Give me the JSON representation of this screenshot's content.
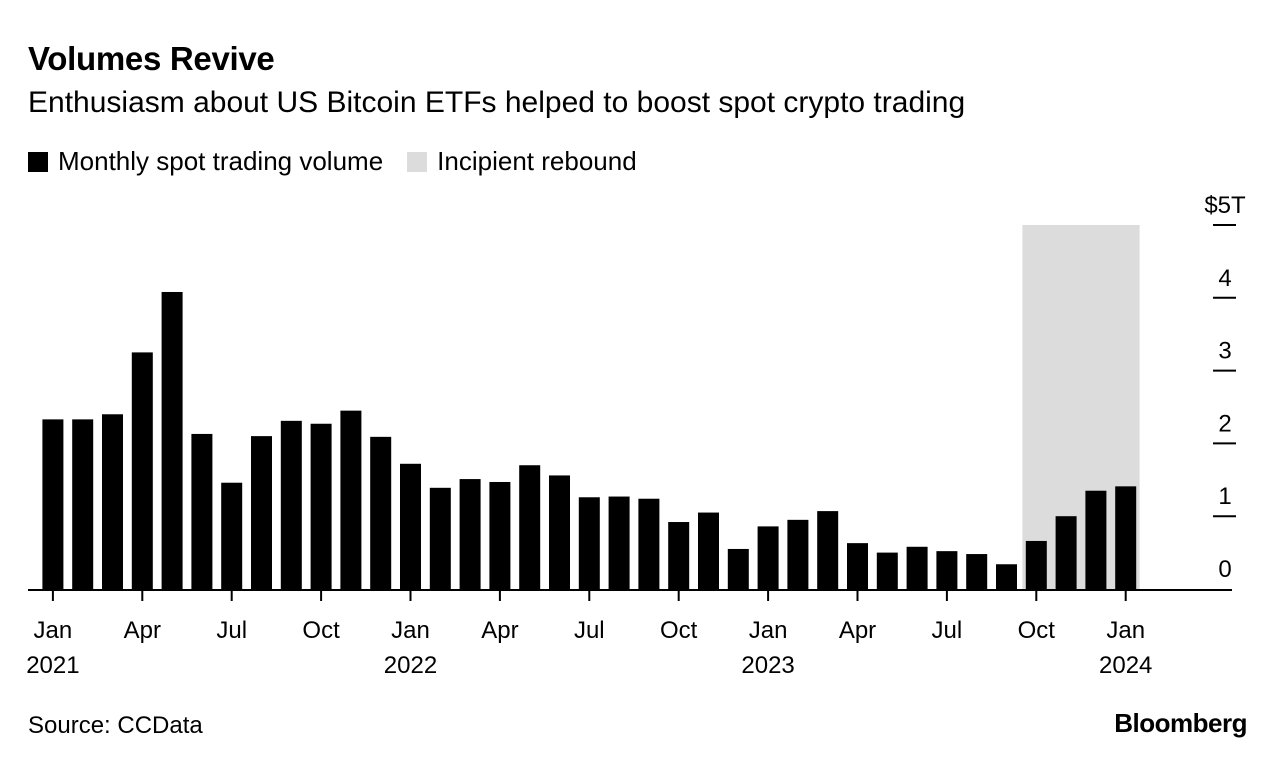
{
  "title": "Volumes Revive",
  "subtitle": "Enthusiasm about US Bitcoin ETFs helped to boost spot crypto trading",
  "legend": {
    "series_label": "Monthly spot trading volume",
    "shade_label": "Incipient rebound"
  },
  "source": "Source: CCData",
  "brand": "Bloomberg",
  "colors": {
    "bar": "#000000",
    "shade": "#dcdcdc",
    "axis": "#000000"
  },
  "chart_data": {
    "type": "bar",
    "title": "Volumes Revive",
    "ylabel": "Monthly spot trading volume ($T)",
    "xlabel": "",
    "ylim": [
      0,
      5
    ],
    "y_ticks": [
      {
        "value": 0,
        "label": "0"
      },
      {
        "value": 1,
        "label": "1"
      },
      {
        "value": 2,
        "label": "2"
      },
      {
        "value": 3,
        "label": "3"
      },
      {
        "value": 4,
        "label": "4"
      },
      {
        "value": 5,
        "label": "$5T"
      }
    ],
    "categories": [
      "Jan 2021",
      "Feb 2021",
      "Mar 2021",
      "Apr 2021",
      "May 2021",
      "Jun 2021",
      "Jul 2021",
      "Aug 2021",
      "Sep 2021",
      "Oct 2021",
      "Nov 2021",
      "Dec 2021",
      "Jan 2022",
      "Feb 2022",
      "Mar 2022",
      "Apr 2022",
      "May 2022",
      "Jun 2022",
      "Jul 2022",
      "Aug 2022",
      "Sep 2022",
      "Oct 2022",
      "Nov 2022",
      "Dec 2022",
      "Jan 2023",
      "Feb 2023",
      "Mar 2023",
      "Apr 2023",
      "May 2023",
      "Jun 2023",
      "Jul 2023",
      "Aug 2023",
      "Sep 2023",
      "Oct 2023",
      "Nov 2023",
      "Dec 2023",
      "Jan 2024"
    ],
    "values": [
      2.33,
      2.33,
      2.4,
      3.25,
      4.08,
      2.13,
      1.46,
      2.1,
      2.31,
      2.27,
      2.45,
      2.09,
      1.72,
      1.39,
      1.51,
      1.47,
      1.7,
      1.56,
      1.26,
      1.27,
      1.24,
      0.92,
      1.05,
      0.55,
      0.86,
      0.95,
      1.07,
      0.63,
      0.5,
      0.58,
      0.52,
      0.48,
      0.34,
      0.66,
      1.0,
      1.35,
      1.41
    ],
    "x_ticks": [
      {
        "index": 0,
        "month": "Jan",
        "year": "2021"
      },
      {
        "index": 3,
        "month": "Apr",
        "year": ""
      },
      {
        "index": 6,
        "month": "Jul",
        "year": ""
      },
      {
        "index": 9,
        "month": "Oct",
        "year": ""
      },
      {
        "index": 12,
        "month": "Jan",
        "year": "2022"
      },
      {
        "index": 15,
        "month": "Apr",
        "year": ""
      },
      {
        "index": 18,
        "month": "Jul",
        "year": ""
      },
      {
        "index": 21,
        "month": "Oct",
        "year": ""
      },
      {
        "index": 24,
        "month": "Jan",
        "year": "2023"
      },
      {
        "index": 27,
        "month": "Apr",
        "year": ""
      },
      {
        "index": 30,
        "month": "Jul",
        "year": ""
      },
      {
        "index": 33,
        "month": "Oct",
        "year": ""
      },
      {
        "index": 36,
        "month": "Jan",
        "year": "2024"
      }
    ],
    "shaded_region": {
      "label": "Incipient rebound",
      "start_index": 33,
      "end_index": 36,
      "ymax": 5
    }
  }
}
